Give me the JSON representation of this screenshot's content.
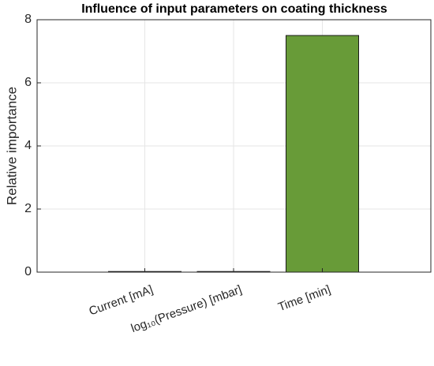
{
  "chart_data": {
    "type": "bar",
    "title": "Influence of input parameters on coating thickness",
    "ylabel": "Relative importance",
    "categories": [
      "Current [mA]",
      "log₁₀(Pressure) [mbar]",
      "Time [min]"
    ],
    "values": [
      0.02,
      0.02,
      7.5
    ],
    "color": "#689b38",
    "ylim": [
      0,
      8
    ],
    "yticks": [
      0,
      2,
      4,
      6,
      8
    ],
    "grid": true
  }
}
